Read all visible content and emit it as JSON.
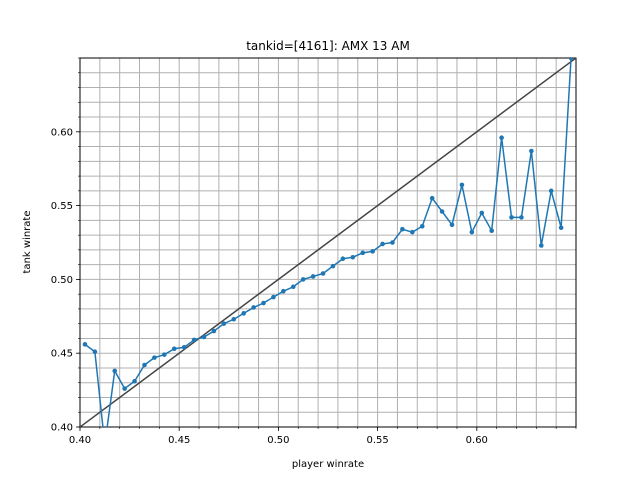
{
  "chart_data": {
    "type": "line",
    "title": "tankid=[4161]: AMX 13 AM",
    "xlabel": "player winrate",
    "ylabel": "tank winrate",
    "xlim": [
      0.4,
      0.65
    ],
    "ylim": [
      0.4,
      0.65
    ],
    "xticks": [
      "0.40",
      "0.45",
      "0.50",
      "0.55",
      "0.60"
    ],
    "yticks": [
      "0.40",
      "0.45",
      "0.50",
      "0.55",
      "0.60"
    ],
    "grid": true,
    "minor_step": 0.01,
    "colors": {
      "series": "#1f77b4",
      "reference": "#444444",
      "grid": "#b0b0b0"
    },
    "reference_line": {
      "x": [
        0.4,
        0.65
      ],
      "y": [
        0.4,
        0.65
      ]
    },
    "series": [
      {
        "x": [
          0.4025,
          0.4075,
          0.4125,
          0.4175,
          0.4225,
          0.4275,
          0.4325,
          0.4375,
          0.4425,
          0.4475,
          0.4525,
          0.4575,
          0.4625,
          0.4675,
          0.4725,
          0.4775,
          0.4825,
          0.4875,
          0.4925,
          0.4975,
          0.5025,
          0.5075,
          0.5125,
          0.5175,
          0.5225,
          0.5275,
          0.5325,
          0.5375,
          0.5425,
          0.5475,
          0.5525,
          0.5575,
          0.5625,
          0.5675,
          0.5725,
          0.5775,
          0.5825,
          0.5875,
          0.5925,
          0.5975,
          0.6025,
          0.6075,
          0.6125,
          0.6175,
          0.6225,
          0.6275,
          0.6325,
          0.6375,
          0.6425,
          0.6475
        ],
        "y": [
          0.456,
          0.451,
          0.388,
          0.438,
          0.426,
          0.431,
          0.442,
          0.447,
          0.449,
          0.453,
          0.454,
          0.459,
          0.461,
          0.465,
          0.47,
          0.473,
          0.477,
          0.481,
          0.484,
          0.488,
          0.492,
          0.495,
          0.5,
          0.502,
          0.504,
          0.509,
          0.514,
          0.515,
          0.518,
          0.519,
          0.524,
          0.525,
          0.534,
          0.532,
          0.536,
          0.555,
          0.546,
          0.537,
          0.564,
          0.532,
          0.545,
          0.533,
          0.596,
          0.542,
          0.542,
          0.587,
          0.523,
          0.56,
          0.535,
          0.65
        ]
      }
    ]
  }
}
